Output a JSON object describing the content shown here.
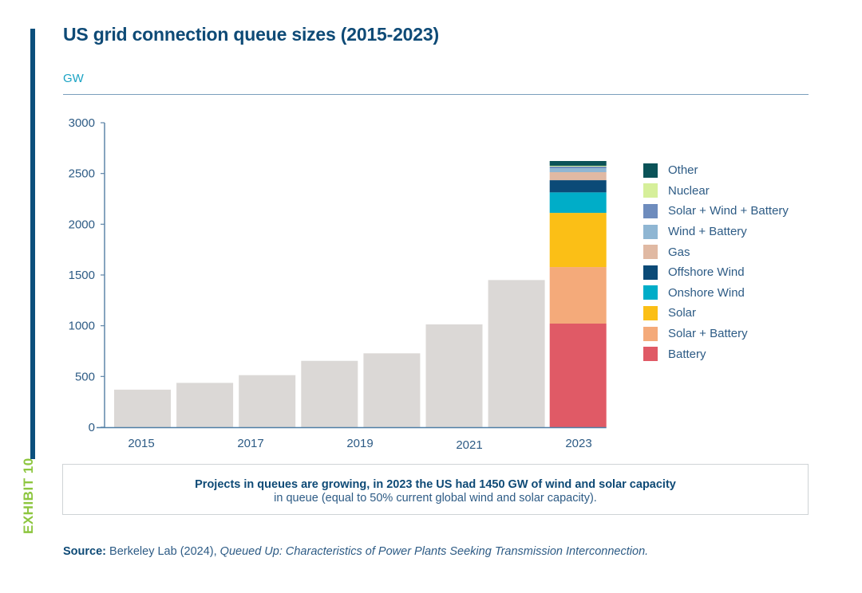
{
  "exhibit_label": "EXHIBIT 10",
  "title": "US grid connection queue sizes (2015-2023)",
  "unit": "GW",
  "note": {
    "bold": "Projects in queues are growing, in 2023 the US had 1450 GW of wind and solar capacity",
    "normal": "in queue (equal to 50% current global wind and solar capacity)."
  },
  "source": {
    "label": "Source:",
    "text": " Berkeley Lab (2024), ",
    "italic": "Queued Up: Characteristics of Power Plants Seeking Transmission Interconnection."
  },
  "chart_data": {
    "type": "bar",
    "title": "US grid connection queue sizes (2015-2023)",
    "ylabel": "GW",
    "xlabel": "",
    "ylim": [
      0,
      3000
    ],
    "yticks": [
      0,
      500,
      1000,
      1500,
      2000,
      2500,
      3000
    ],
    "xtick_labels": [
      "2015",
      "2017",
      "2019",
      "2021",
      "2023"
    ],
    "grid": false,
    "legend_position": "right",
    "total_bars": [
      {
        "category": "2016",
        "value": 370
      },
      {
        "category": "2017",
        "value": 437
      },
      {
        "category": "2018",
        "value": 513
      },
      {
        "category": "2019",
        "value": 654
      },
      {
        "category": "2020",
        "value": 728
      },
      {
        "category": "2021",
        "value": 1013
      },
      {
        "category": "2022",
        "value": 1450
      }
    ],
    "stacked_bar": {
      "category": "2023",
      "series": [
        {
          "name": "Battery",
          "value": 1021,
          "color": "#e05a66"
        },
        {
          "name": "Solar + Battery",
          "value": 557,
          "color": "#f4aa7a"
        },
        {
          "name": "Solar",
          "value": 534,
          "color": "#fbbf16"
        },
        {
          "name": "Onshore Wind",
          "value": 202,
          "color": "#00adc8"
        },
        {
          "name": "Offshore Wind",
          "value": 120,
          "color": "#0b4a77"
        },
        {
          "name": "Gas",
          "value": 79,
          "color": "#e0b9a3"
        },
        {
          "name": "Wind + Battery",
          "value": 39,
          "color": "#8fb6d3"
        },
        {
          "name": "Solar + Wind + Battery",
          "value": 16,
          "color": "#6e8cbd"
        },
        {
          "name": "Nuclear",
          "value": 8,
          "color": "#d6ef9a"
        },
        {
          "name": "Other",
          "value": 47,
          "color": "#0b5358"
        }
      ]
    },
    "total_bar_color": "#dbd8d6"
  }
}
